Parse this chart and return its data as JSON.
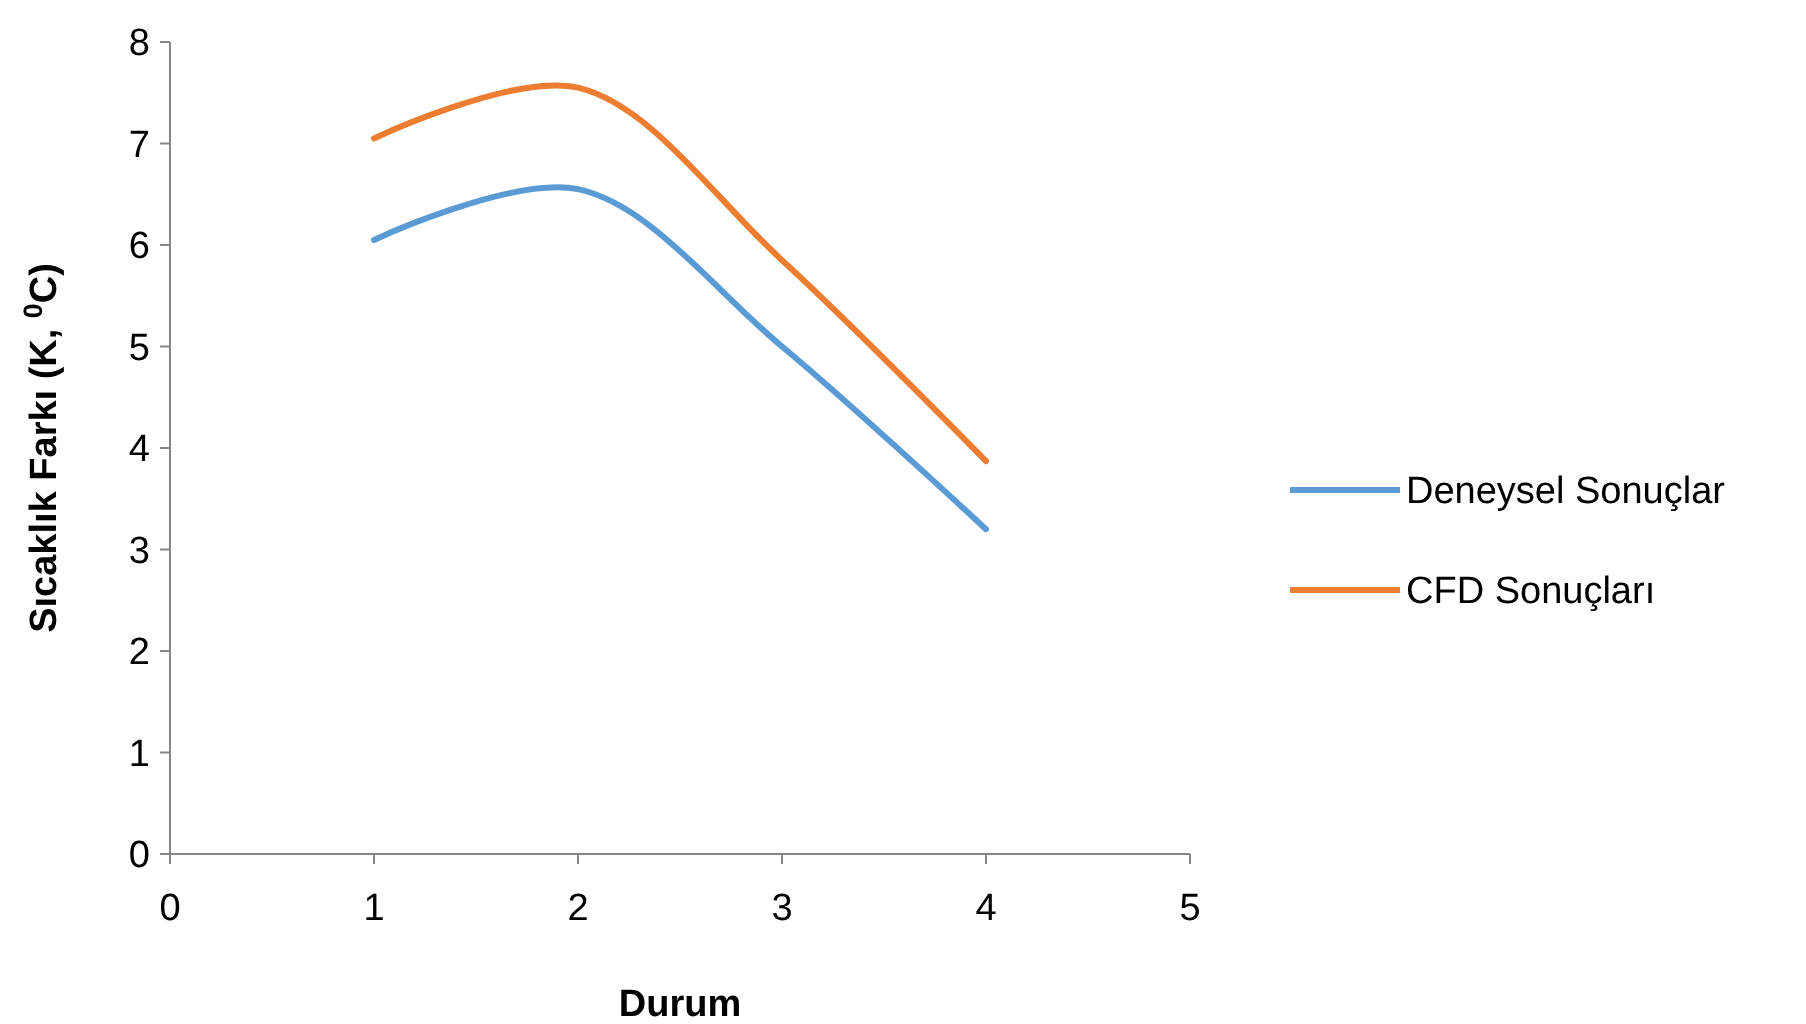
{
  "chart_data": {
    "type": "line",
    "xlabel": "Durum",
    "ylabel": "Sıcaklık Farkı (K, $^{0}$C)",
    "x": [
      1,
      2,
      3,
      4
    ],
    "xlim": [
      0,
      5
    ],
    "xticks": [
      0,
      1,
      2,
      3,
      4,
      5
    ],
    "ylim": [
      0,
      8
    ],
    "yticks": [
      0,
      1,
      2,
      3,
      4,
      5,
      6,
      7,
      8
    ],
    "grid": false,
    "legend": "right",
    "marker": "none",
    "line_style": "solid",
    "series": [
      {
        "name": "Deneysel Sonuçlar",
        "color": "#5b9bd5",
        "values": [
          6.05,
          6.55,
          5.0,
          3.2
        ]
      },
      {
        "name": "CFD Sonuçları",
        "color": "#ed7d31",
        "values": [
          7.05,
          7.55,
          5.85,
          3.87
        ]
      }
    ]
  }
}
